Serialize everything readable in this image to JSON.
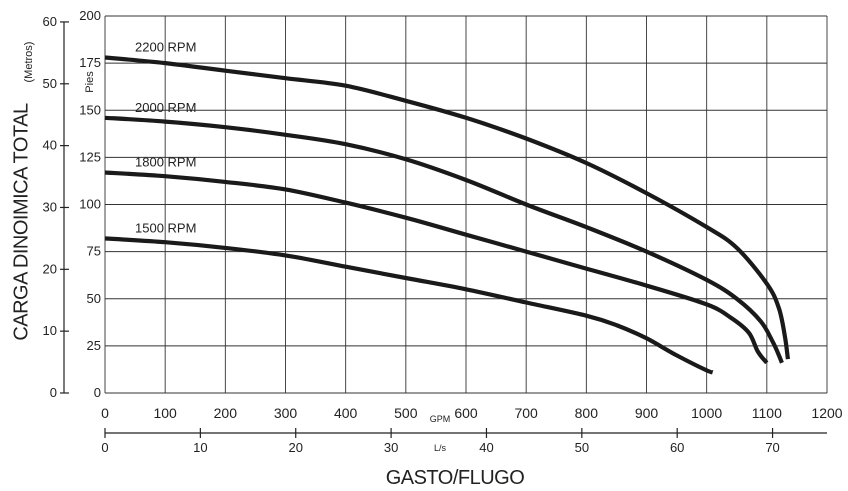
{
  "chart_data": {
    "type": "line",
    "title": "",
    "xlabel": "GASTO/FLUGO",
    "ylabel": "CARGA DINOIMICA TOTAL",
    "x_primary": {
      "unit": "GPM",
      "ticks": [
        0,
        100,
        200,
        300,
        400,
        500,
        600,
        700,
        800,
        900,
        1000,
        1100,
        1200
      ],
      "range": [
        0,
        1200
      ]
    },
    "x_secondary": {
      "unit": "L/s",
      "ticks": [
        0,
        10,
        20,
        30,
        40,
        50,
        60,
        70
      ]
    },
    "y_primary": {
      "unit": "Pies",
      "ticks": [
        0,
        25,
        50,
        75,
        100,
        125,
        150,
        175,
        200
      ],
      "range": [
        0,
        200
      ]
    },
    "y_secondary": {
      "unit": "Metros",
      "ticks": [
        0,
        10,
        20,
        30,
        40,
        50,
        60
      ]
    },
    "grid": true,
    "series": [
      {
        "name": "2200 RPM",
        "x": [
          0,
          100,
          200,
          300,
          400,
          500,
          600,
          700,
          800,
          900,
          1000,
          1050,
          1100,
          1120,
          1130,
          1135
        ],
        "y": [
          178,
          175,
          171,
          167,
          163,
          155,
          146,
          135,
          122,
          106,
          88,
          77,
          58,
          45,
          30,
          18
        ]
      },
      {
        "name": "2000 RPM",
        "x": [
          0,
          100,
          200,
          300,
          400,
          500,
          600,
          700,
          800,
          900,
          1000,
          1050,
          1090,
          1110,
          1120,
          1125
        ],
        "y": [
          146,
          144,
          141,
          137,
          132,
          124,
          113,
          100,
          88,
          75,
          60,
          50,
          38,
          27,
          20,
          16
        ]
      },
      {
        "name": "1800 RPM",
        "x": [
          0,
          100,
          200,
          300,
          400,
          500,
          600,
          700,
          800,
          900,
          1000,
          1040,
          1070,
          1085,
          1100
        ],
        "y": [
          117,
          115,
          112,
          108,
          101,
          93,
          84,
          75,
          66,
          57,
          47,
          40,
          32,
          22,
          16
        ]
      },
      {
        "name": "1500 RPM",
        "x": [
          0,
          100,
          200,
          300,
          400,
          500,
          600,
          700,
          800,
          850,
          900,
          950,
          1000,
          1010
        ],
        "y": [
          82,
          80,
          77,
          73,
          67,
          61,
          55,
          48,
          41,
          36,
          29,
          20,
          12,
          11
        ]
      }
    ]
  }
}
